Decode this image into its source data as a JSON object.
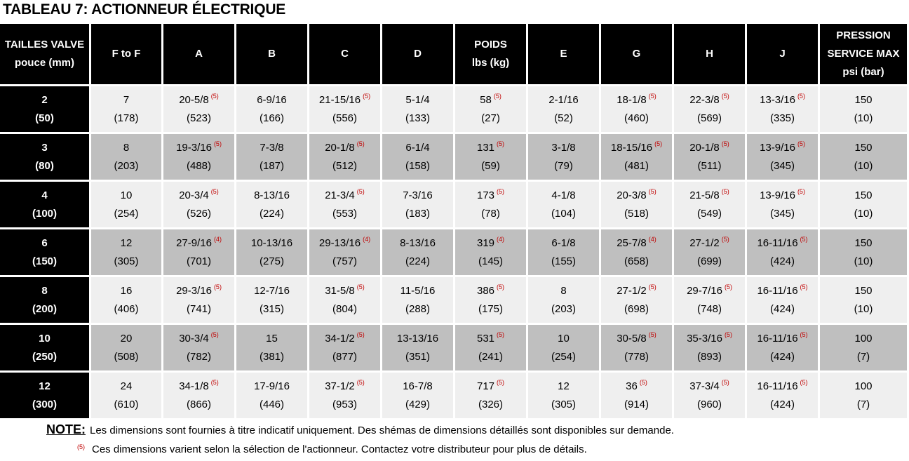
{
  "title": "TABLEAU 7: ACTIONNEUR ÉLECTRIQUE",
  "headers": [
    [
      "TAILLES VALVE",
      "pouce (mm)"
    ],
    [
      "F to F"
    ],
    [
      "A"
    ],
    [
      "B"
    ],
    [
      "C"
    ],
    [
      "D"
    ],
    [
      "POIDS",
      "lbs (kg)"
    ],
    [
      "E"
    ],
    [
      "G"
    ],
    [
      "H"
    ],
    [
      "J"
    ],
    [
      "PRESSION",
      "SERVICE MAX",
      "psi (bar)"
    ]
  ],
  "rows": [
    [
      [
        "2",
        "(50)",
        ""
      ],
      [
        "7",
        "(178)",
        ""
      ],
      [
        "20-5/8",
        "(523)",
        "(5)"
      ],
      [
        "6-9/16",
        "(166)",
        ""
      ],
      [
        "21-15/16",
        "(556)",
        "(5)"
      ],
      [
        "5-1/4",
        "(133)",
        ""
      ],
      [
        "58",
        "(27)",
        "(5)"
      ],
      [
        "2-1/16",
        "(52)",
        ""
      ],
      [
        "18-1/8",
        "(460)",
        "(5)"
      ],
      [
        "22-3/8",
        "(569)",
        "(5)"
      ],
      [
        "13-3/16",
        "(335)",
        "(5)"
      ],
      [
        "150",
        "(10)",
        ""
      ]
    ],
    [
      [
        "3",
        "(80)",
        ""
      ],
      [
        "8",
        "(203)",
        ""
      ],
      [
        "19-3/16",
        "(488)",
        "(5)"
      ],
      [
        "7-3/8",
        "(187)",
        ""
      ],
      [
        "20-1/8",
        "(512)",
        "(5)"
      ],
      [
        "6-1/4",
        "(158)",
        ""
      ],
      [
        "131",
        "(59)",
        "(5)"
      ],
      [
        "3-1/8",
        "(79)",
        ""
      ],
      [
        "18-15/16",
        "(481)",
        "(5)"
      ],
      [
        "20-1/8",
        "(511)",
        "(5)"
      ],
      [
        "13-9/16",
        "(345)",
        "(5)"
      ],
      [
        "150",
        "(10)",
        ""
      ]
    ],
    [
      [
        "4",
        "(100)",
        ""
      ],
      [
        "10",
        "(254)",
        ""
      ],
      [
        "20-3/4",
        "(526)",
        "(5)"
      ],
      [
        "8-13/16",
        "(224)",
        ""
      ],
      [
        "21-3/4",
        "(553)",
        "(5)"
      ],
      [
        "7-3/16",
        "(183)",
        ""
      ],
      [
        "173",
        "(78)",
        "(5)"
      ],
      [
        "4-1/8",
        "(104)",
        ""
      ],
      [
        "20-3/8",
        "(518)",
        "(5)"
      ],
      [
        "21-5/8",
        "(549)",
        "(5)"
      ],
      [
        "13-9/16",
        "(345)",
        "(5)"
      ],
      [
        "150",
        "(10)",
        ""
      ]
    ],
    [
      [
        "6",
        "(150)",
        ""
      ],
      [
        "12",
        "(305)",
        ""
      ],
      [
        "27-9/16",
        "(701)",
        "(4)"
      ],
      [
        "10-13/16",
        "(275)",
        ""
      ],
      [
        "29-13/16",
        "(757)",
        "(4)"
      ],
      [
        "8-13/16",
        "(224)",
        ""
      ],
      [
        "319",
        "(145)",
        "(4)"
      ],
      [
        "6-1/8",
        "(155)",
        ""
      ],
      [
        "25-7/8",
        "(658)",
        "(4)"
      ],
      [
        "27-1/2",
        "(699)",
        "(5)"
      ],
      [
        "16-11/16",
        "(424)",
        "(5)"
      ],
      [
        "150",
        "(10)",
        ""
      ]
    ],
    [
      [
        "8",
        "(200)",
        ""
      ],
      [
        "16",
        "(406)",
        ""
      ],
      [
        "29-3/16",
        "(741)",
        "(5)"
      ],
      [
        "12-7/16",
        "(315)",
        ""
      ],
      [
        "31-5/8",
        "(804)",
        "(5)"
      ],
      [
        "11-5/16",
        "(288)",
        ""
      ],
      [
        "386",
        "(175)",
        "(5)"
      ],
      [
        "8",
        "(203)",
        ""
      ],
      [
        "27-1/2",
        "(698)",
        "(5)"
      ],
      [
        "29-7/16",
        "(748)",
        "(5)"
      ],
      [
        "16-11/16",
        "(424)",
        "(5)"
      ],
      [
        "150",
        "(10)",
        ""
      ]
    ],
    [
      [
        "10",
        "(250)",
        ""
      ],
      [
        "20",
        "(508)",
        ""
      ],
      [
        "30-3/4",
        "(782)",
        "(5)"
      ],
      [
        "15",
        "(381)",
        ""
      ],
      [
        "34-1/2",
        "(877)",
        "(5)"
      ],
      [
        "13-13/16",
        "(351)",
        ""
      ],
      [
        "531",
        "(241)",
        "(5)"
      ],
      [
        "10",
        "(254)",
        ""
      ],
      [
        "30-5/8",
        "(778)",
        "(5)"
      ],
      [
        "35-3/16",
        "(893)",
        "(5)"
      ],
      [
        "16-11/16",
        "(424)",
        "(5)"
      ],
      [
        "100",
        "(7)",
        ""
      ]
    ],
    [
      [
        "12",
        "(300)",
        ""
      ],
      [
        "24",
        "(610)",
        ""
      ],
      [
        "34-1/8",
        "(866)",
        "(5)"
      ],
      [
        "17-9/16",
        "(446)",
        ""
      ],
      [
        "37-1/2",
        "(953)",
        "(5)"
      ],
      [
        "16-7/8",
        "(429)",
        ""
      ],
      [
        "717",
        "(326)",
        "(5)"
      ],
      [
        "12",
        "(305)",
        ""
      ],
      [
        "36",
        "(914)",
        "(5)"
      ],
      [
        "37-3/4",
        "(960)",
        "(5)"
      ],
      [
        "16-11/16",
        "(424)",
        "(5)"
      ],
      [
        "100",
        "(7)",
        ""
      ]
    ]
  ],
  "notes": {
    "label": "NOTE:",
    "text": "Les dimensions sont fournies à titre indicatif uniquement. Des shémas de dimensions détaillés sont disponibles sur demande.",
    "footnote_mark": "(5)",
    "footnote_text": "Ces dimensions varient selon la sélection de l'actionneur. Contactez votre distributeur pour plus de détails."
  },
  "colors": {
    "header_bg": "#000000",
    "row_light": "#efefef",
    "row_dark": "#bfbfbf",
    "footnote": "#c00000"
  }
}
